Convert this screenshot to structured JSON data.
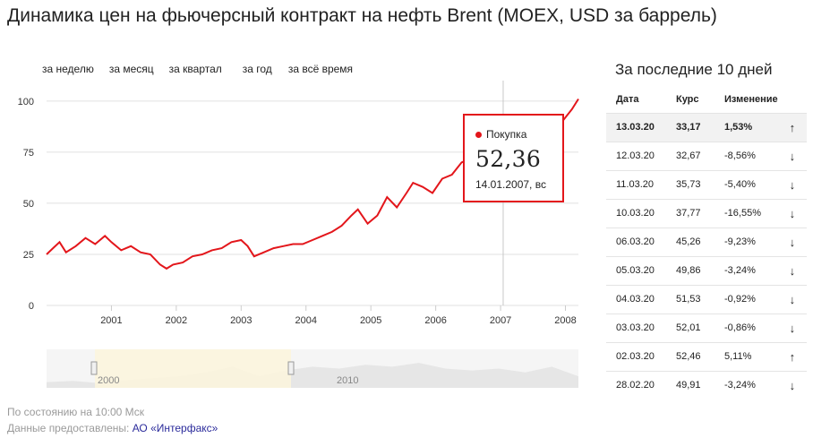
{
  "title": "Динамика цен на фьючерсный контракт на нефть Brent (MOEX, USD за баррель)",
  "periods": [
    "за неделю",
    "за месяц",
    "за квартал",
    "за год",
    "за всё время"
  ],
  "colors": {
    "line": "#e3161b",
    "grid": "#e0e0e0",
    "navigator_fill": "#e6e6e6",
    "navigator_selected": "#fbf5dc"
  },
  "chart_data": {
    "type": "line",
    "title": "",
    "xlabel": "",
    "ylabel": "",
    "xlim": [
      2000.0,
      2008.2
    ],
    "ylim": [
      0,
      110
    ],
    "yticks": [
      0,
      25,
      50,
      75,
      100
    ],
    "xticks": [
      "2001",
      "2002",
      "2003",
      "2004",
      "2005",
      "2006",
      "2007",
      "2008"
    ],
    "grid": true,
    "series": [
      {
        "name": "",
        "x": [
          2000.0,
          2000.1,
          2000.2,
          2000.3,
          2000.45,
          2000.6,
          2000.75,
          2000.9,
          2001.0,
          2001.15,
          2001.3,
          2001.45,
          2001.6,
          2001.75,
          2001.85,
          2001.95,
          2002.1,
          2002.25,
          2002.4,
          2002.55,
          2002.7,
          2002.85,
          2003.0,
          2003.1,
          2003.2,
          2003.35,
          2003.5,
          2003.65,
          2003.8,
          2003.95,
          2004.1,
          2004.25,
          2004.4,
          2004.55,
          2004.7,
          2004.8,
          2004.95,
          2005.1,
          2005.25,
          2005.4,
          2005.55,
          2005.65,
          2005.8,
          2005.95,
          2006.1,
          2006.25,
          2006.4,
          2006.55,
          2006.65,
          2006.8,
          2006.95,
          2007.04,
          2007.15,
          2007.3,
          2007.45,
          2007.6,
          2007.75,
          2007.9,
          2008.0,
          2008.1,
          2008.2
        ],
        "values": [
          25,
          28,
          31,
          26,
          29,
          33,
          30,
          34,
          31,
          27,
          29,
          26,
          25,
          20,
          18,
          20,
          21,
          24,
          25,
          27,
          28,
          31,
          32,
          29,
          24,
          26,
          28,
          29,
          30,
          30,
          32,
          34,
          36,
          39,
          44,
          47,
          40,
          44,
          53,
          48,
          55,
          60,
          58,
          55,
          62,
          64,
          70,
          72,
          68,
          61,
          60,
          52.36,
          60,
          67,
          72,
          76,
          80,
          88,
          92,
          96,
          101
        ]
      }
    ]
  },
  "tooltip": {
    "label": "Покупка",
    "value": "52,36",
    "date": "14.01.2007, вс"
  },
  "navigator": {
    "labels": [
      "2000",
      "2010"
    ]
  },
  "side": {
    "title": "За последние 10 дней",
    "headers": [
      "Дата",
      "Курс",
      "Изменение"
    ],
    "rows": [
      {
        "date": "13.03.20",
        "rate": "33,17",
        "change": "1,53%",
        "dir": "up"
      },
      {
        "date": "12.03.20",
        "rate": "32,67",
        "change": "-8,56%",
        "dir": "down"
      },
      {
        "date": "11.03.20",
        "rate": "35,73",
        "change": "-5,40%",
        "dir": "down"
      },
      {
        "date": "10.03.20",
        "rate": "37,77",
        "change": "-16,55%",
        "dir": "down"
      },
      {
        "date": "06.03.20",
        "rate": "45,26",
        "change": "-9,23%",
        "dir": "down"
      },
      {
        "date": "05.03.20",
        "rate": "49,86",
        "change": "-3,24%",
        "dir": "down"
      },
      {
        "date": "04.03.20",
        "rate": "51,53",
        "change": "-0,92%",
        "dir": "down"
      },
      {
        "date": "03.03.20",
        "rate": "52,01",
        "change": "-0,86%",
        "dir": "down"
      },
      {
        "date": "02.03.20",
        "rate": "52,46",
        "change": "5,11%",
        "dir": "up"
      },
      {
        "date": "28.02.20",
        "rate": "49,91",
        "change": "-3,24%",
        "dir": "down"
      }
    ]
  },
  "footer": {
    "status": "По состоянию на 10:00 Мск",
    "source_prefix": "Данные предоставлены:",
    "source_link": "АО «Интерфакс»"
  }
}
